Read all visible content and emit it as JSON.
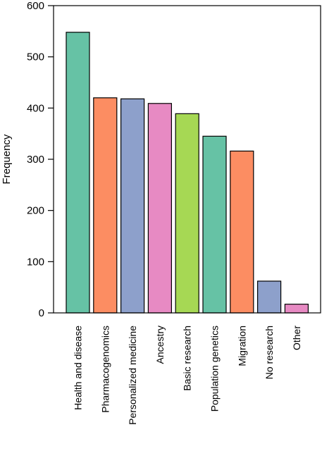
{
  "chart_data": {
    "type": "bar",
    "title": "",
    "xlabel": "",
    "ylabel": "Frequency",
    "ylim": [
      0,
      600
    ],
    "yticks": [
      0,
      100,
      200,
      300,
      400,
      500,
      600
    ],
    "grid": false,
    "legend": "none",
    "categories": [
      "Health and disease",
      "Pharmacogenomics",
      "Personalized medicine",
      "Ancestry",
      "Basic research",
      "Population genetics",
      "Migration",
      "No research",
      "Other"
    ],
    "values": [
      548,
      420,
      418,
      409,
      389,
      345,
      316,
      62,
      17
    ],
    "colors": [
      "#66c2a5",
      "#fc8d62",
      "#8da0cb",
      "#e78ac3",
      "#a6d854",
      "#66c2a5",
      "#fc8d62",
      "#8da0cb",
      "#e78ac3"
    ]
  }
}
